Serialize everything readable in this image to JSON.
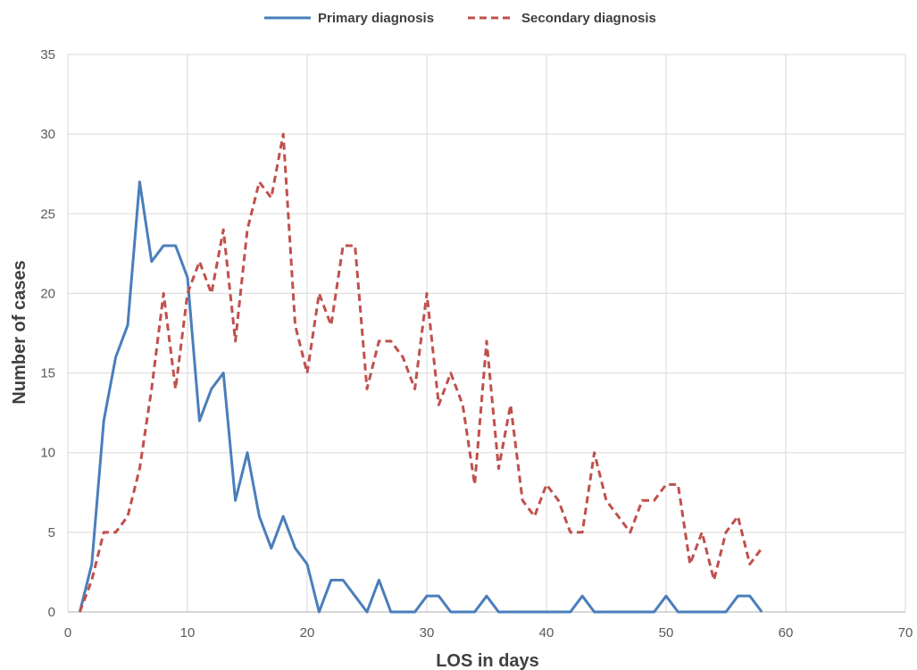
{
  "chart_data": {
    "type": "line",
    "xlabel": "LOS in days",
    "ylabel": "Number of cases",
    "xlim": [
      0,
      70
    ],
    "ylim": [
      0,
      35
    ],
    "x_ticks": [
      0,
      10,
      20,
      30,
      40,
      50,
      60,
      70
    ],
    "y_ticks": [
      0,
      5,
      10,
      15,
      20,
      25,
      30,
      35
    ],
    "grid": true,
    "legend_position": "top-center",
    "series": [
      {
        "name": "Primary diagnosis",
        "color": "#4a7ebb",
        "style": "solid",
        "x": [
          1,
          2,
          3,
          4,
          5,
          6,
          7,
          8,
          9,
          10,
          11,
          12,
          13,
          14,
          15,
          16,
          17,
          18,
          19,
          20,
          21,
          22,
          23,
          24,
          25,
          26,
          27,
          28,
          29,
          30,
          31,
          32,
          33,
          34,
          35,
          36,
          37,
          38,
          39,
          40,
          41,
          42,
          43,
          44,
          45,
          46,
          47,
          48,
          49,
          50,
          51,
          52,
          53,
          54,
          55,
          56,
          57,
          58
        ],
        "y": [
          0,
          3,
          12,
          16,
          18,
          27,
          22,
          23,
          23,
          21,
          12,
          14,
          15,
          7,
          10,
          6,
          4,
          6,
          4,
          3,
          0,
          2,
          2,
          1,
          0,
          2,
          0,
          0,
          0,
          1,
          1,
          0,
          0,
          0,
          1,
          0,
          0,
          0,
          0,
          0,
          0,
          0,
          1,
          0,
          0,
          0,
          0,
          0,
          0,
          1,
          0,
          0,
          0,
          0,
          0,
          1,
          1,
          0
        ]
      },
      {
        "name": "Secondary diagnosis",
        "color": "#c0504d",
        "style": "dashed",
        "x": [
          1,
          2,
          3,
          4,
          5,
          6,
          7,
          8,
          9,
          10,
          11,
          12,
          13,
          14,
          15,
          16,
          17,
          18,
          19,
          20,
          21,
          22,
          23,
          24,
          25,
          26,
          27,
          28,
          29,
          30,
          31,
          32,
          33,
          34,
          35,
          36,
          37,
          38,
          39,
          40,
          41,
          42,
          43,
          44,
          45,
          46,
          47,
          48,
          49,
          50,
          51,
          52,
          53,
          54,
          55,
          56,
          57,
          58
        ],
        "y": [
          0,
          2,
          5,
          5,
          6,
          9,
          14,
          20,
          14,
          20,
          22,
          20,
          24,
          17,
          24,
          27,
          26,
          30,
          18,
          15,
          20,
          18,
          23,
          23,
          14,
          17,
          17,
          16,
          14,
          20,
          13,
          15,
          13,
          8,
          17,
          9,
          13,
          7,
          6,
          8,
          7,
          5,
          5,
          10,
          7,
          6,
          5,
          7,
          7,
          8,
          8,
          3,
          5,
          2,
          5,
          6,
          3,
          4
        ]
      }
    ]
  }
}
